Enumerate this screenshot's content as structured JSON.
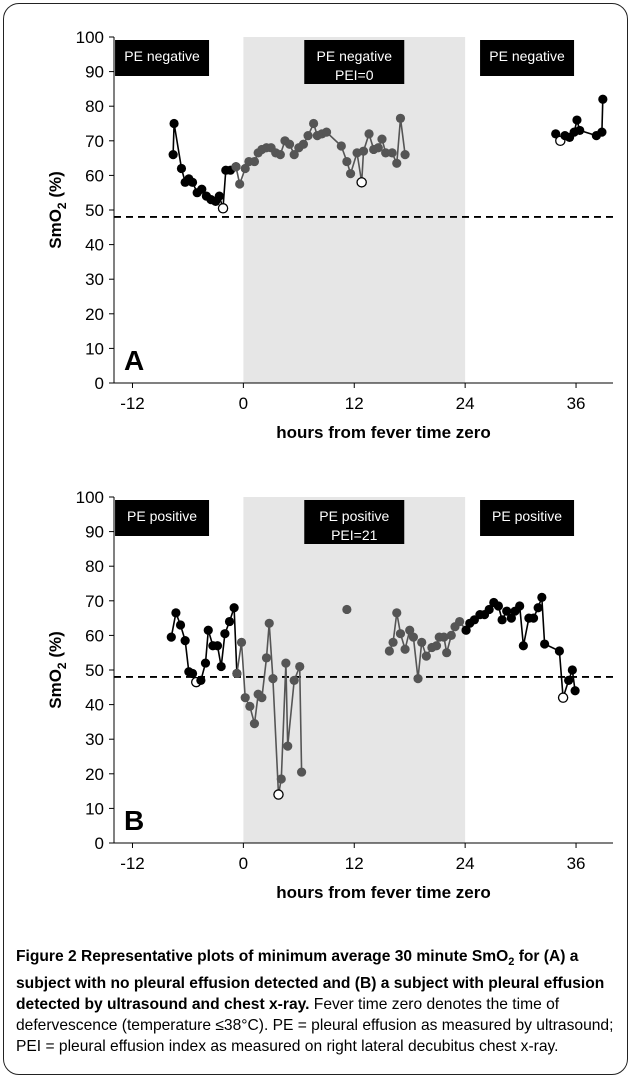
{
  "caption": {
    "label": "Figure 2",
    "title_html": "Representative plots of minimum average 30 minute SmO<sub>2</sub> for (A) a subject with no pleural effusion detected and (B) a subject with pleural effusion detected by ultrasound and chest x-ray.",
    "text": "Fever time zero denotes the time of defervescence (temperature ≤38°C). PE = pleural effusion as measured by ultrasound; PEI = pleural effusion index as measured on right lateral decubitus chest x-ray."
  },
  "chart_data": [
    {
      "panel": "A",
      "type": "line",
      "xlabel": "hours from fever time zero",
      "ylabel": "SmO2 (%)",
      "xlim": [
        -14,
        40
      ],
      "ylim": [
        0,
        100
      ],
      "xticks": [
        -12,
        0,
        12,
        24,
        36
      ],
      "yticks": [
        0,
        10,
        20,
        30,
        40,
        50,
        60,
        70,
        80,
        90,
        100
      ],
      "threshold": 48,
      "shaded_region": [
        0,
        24
      ],
      "annotations": [
        {
          "lines": [
            "PE negative"
          ],
          "x_center": -8.8,
          "region": "left"
        },
        {
          "lines": [
            "PE negative",
            "PEI=0"
          ],
          "x_center": 12,
          "region": "middle"
        },
        {
          "lines": [
            "PE negative"
          ],
          "x_center": 30.7,
          "region": "right"
        }
      ],
      "series": [
        {
          "color": "#000000",
          "points": [
            [
              -7.6,
              66
            ],
            [
              -7.5,
              75
            ],
            [
              -6.7,
              62
            ],
            [
              -6.3,
              58
            ],
            [
              -5.9,
              59
            ],
            [
              -5.5,
              58
            ],
            [
              -5.0,
              55
            ],
            [
              -4.5,
              56
            ],
            [
              -4.0,
              54
            ],
            [
              -3.5,
              53
            ],
            [
              -3.0,
              52.5
            ],
            [
              -2.6,
              54
            ],
            [
              -2.2,
              50.5
            ],
            [
              -1.9,
              61.5
            ],
            [
              -1.4,
              61.5
            ],
            [
              -0.8,
              62.5
            ]
          ],
          "hollow": [
            [
              -2.2,
              50.5
            ]
          ]
        },
        {
          "color": "#555555",
          "points": [
            [
              -0.8,
              62.5
            ],
            [
              -0.4,
              57.5
            ],
            [
              0.2,
              62
            ],
            [
              0.6,
              64
            ],
            [
              1.2,
              64
            ],
            [
              1.6,
              66.5
            ],
            [
              2.0,
              67.5
            ],
            [
              2.5,
              68
            ],
            [
              3.0,
              68
            ],
            [
              3.5,
              66.5
            ],
            [
              4.0,
              66
            ],
            [
              4.5,
              70
            ],
            [
              5.0,
              69
            ],
            [
              5.5,
              66
            ],
            [
              6.0,
              68
            ],
            [
              6.5,
              69
            ],
            [
              7.0,
              71.5
            ],
            [
              7.6,
              75
            ],
            [
              8.0,
              71.5
            ],
            [
              8.5,
              72
            ],
            [
              9.0,
              72.5
            ],
            [
              10.6,
              68.5
            ],
            [
              11.2,
              64
            ],
            [
              11.6,
              60.5
            ],
            [
              12.3,
              66.5
            ],
            [
              12.8,
              58
            ],
            [
              13.0,
              67
            ],
            [
              13.6,
              72
            ],
            [
              14.1,
              67.5
            ],
            [
              14.6,
              68
            ],
            [
              15.0,
              70.5
            ],
            [
              15.4,
              66.5
            ],
            [
              16.1,
              66.5
            ],
            [
              16.6,
              63.5
            ],
            [
              17.0,
              76.5
            ],
            [
              17.5,
              66
            ]
          ],
          "hollow": [
            [
              12.8,
              58
            ]
          ]
        },
        {
          "color": "#000000",
          "points": [
            [
              33.8,
              72
            ],
            [
              34.3,
              70
            ],
            [
              34.8,
              71.5
            ],
            [
              35.3,
              71
            ],
            [
              35.8,
              72.5
            ],
            [
              36.1,
              76
            ],
            [
              36.4,
              73
            ],
            [
              38.2,
              71.5
            ],
            [
              38.8,
              72.5
            ],
            [
              38.9,
              82
            ]
          ],
          "hollow": [
            [
              34.3,
              70
            ]
          ]
        }
      ]
    },
    {
      "panel": "B",
      "type": "line",
      "xlabel": "hours from fever time zero",
      "ylabel": "SmO2 (%)",
      "xlim": [
        -14,
        40
      ],
      "ylim": [
        0,
        100
      ],
      "xticks": [
        -12,
        0,
        12,
        24,
        36
      ],
      "yticks": [
        0,
        10,
        20,
        30,
        40,
        50,
        60,
        70,
        80,
        90,
        100
      ],
      "threshold": 48,
      "shaded_region": [
        0,
        24
      ],
      "annotations": [
        {
          "lines": [
            "PE positive"
          ],
          "x_center": -8.8,
          "region": "left"
        },
        {
          "lines": [
            "PE positive",
            "PEI=21"
          ],
          "x_center": 12,
          "region": "middle"
        },
        {
          "lines": [
            "PE positive"
          ],
          "x_center": 30.7,
          "region": "right"
        }
      ],
      "series": [
        {
          "color": "#000000",
          "points": [
            [
              -7.8,
              59.5
            ],
            [
              -7.3,
              66.5
            ],
            [
              -6.8,
              63
            ],
            [
              -6.3,
              58.5
            ],
            [
              -5.9,
              49.5
            ],
            [
              -5.5,
              49
            ],
            [
              -5.1,
              46.5
            ],
            [
              -4.6,
              47
            ],
            [
              -4.1,
              52
            ],
            [
              -3.8,
              61.5
            ],
            [
              -3.3,
              57
            ],
            [
              -2.8,
              57
            ],
            [
              -2.4,
              51
            ],
            [
              -2.0,
              60.5
            ],
            [
              -1.5,
              64
            ],
            [
              -1.0,
              68
            ],
            [
              -0.7,
              49
            ]
          ],
          "hollow": [
            [
              -5.1,
              46.5
            ]
          ]
        },
        {
          "color": "#555555",
          "points": [
            [
              -0.7,
              49
            ],
            [
              -0.2,
              58
            ],
            [
              0.2,
              42
            ],
            [
              0.7,
              39.5
            ],
            [
              1.2,
              34.5
            ],
            [
              1.6,
              43
            ],
            [
              2.0,
              42
            ],
            [
              2.5,
              53.5
            ],
            [
              2.8,
              63.5
            ],
            [
              3.2,
              47.5
            ],
            [
              3.8,
              14
            ],
            [
              4.1,
              18.5
            ],
            [
              4.6,
              52
            ],
            [
              4.8,
              28
            ],
            [
              5.5,
              47
            ],
            [
              6.1,
              51
            ],
            [
              6.3,
              20.5
            ]
          ],
          "hollow": [
            [
              3.8,
              14
            ]
          ]
        },
        {
          "color": "#555555",
          "points": [
            [
              11.2,
              67.5
            ]
          ],
          "hollow": []
        },
        {
          "color": "#555555",
          "points": [
            [
              15.8,
              55.5
            ],
            [
              16.2,
              58
            ],
            [
              16.6,
              66.5
            ],
            [
              17.0,
              60.5
            ],
            [
              17.5,
              56
            ],
            [
              18.0,
              61.5
            ],
            [
              18.4,
              59.5
            ],
            [
              18.9,
              47.5
            ],
            [
              19.3,
              58
            ],
            [
              19.8,
              54
            ],
            [
              20.4,
              56.5
            ],
            [
              20.9,
              57
            ],
            [
              21.2,
              59.5
            ],
            [
              21.7,
              59.5
            ],
            [
              22.0,
              55
            ],
            [
              22.5,
              60
            ],
            [
              22.9,
              62.5
            ],
            [
              23.4,
              64
            ],
            [
              24.1,
              61.5
            ]
          ],
          "hollow": []
        },
        {
          "color": "#000000",
          "points": [
            [
              24.1,
              61.5
            ],
            [
              24.5,
              63.5
            ],
            [
              25.0,
              64.5
            ],
            [
              25.6,
              66
            ],
            [
              26.1,
              66
            ],
            [
              26.6,
              67.5
            ],
            [
              27.1,
              69.5
            ],
            [
              27.6,
              68.5
            ],
            [
              28.0,
              64.5
            ],
            [
              28.5,
              67
            ],
            [
              29.0,
              65
            ],
            [
              29.4,
              67
            ],
            [
              29.9,
              68.5
            ],
            [
              30.3,
              57
            ],
            [
              30.9,
              65
            ],
            [
              31.4,
              65
            ],
            [
              31.9,
              68
            ],
            [
              32.3,
              71
            ],
            [
              32.6,
              57.5
            ],
            [
              34.2,
              55.5
            ],
            [
              34.6,
              42
            ],
            [
              35.2,
              47
            ],
            [
              35.6,
              50
            ],
            [
              35.9,
              44
            ]
          ],
          "hollow": [
            [
              34.6,
              42
            ]
          ]
        }
      ]
    }
  ]
}
